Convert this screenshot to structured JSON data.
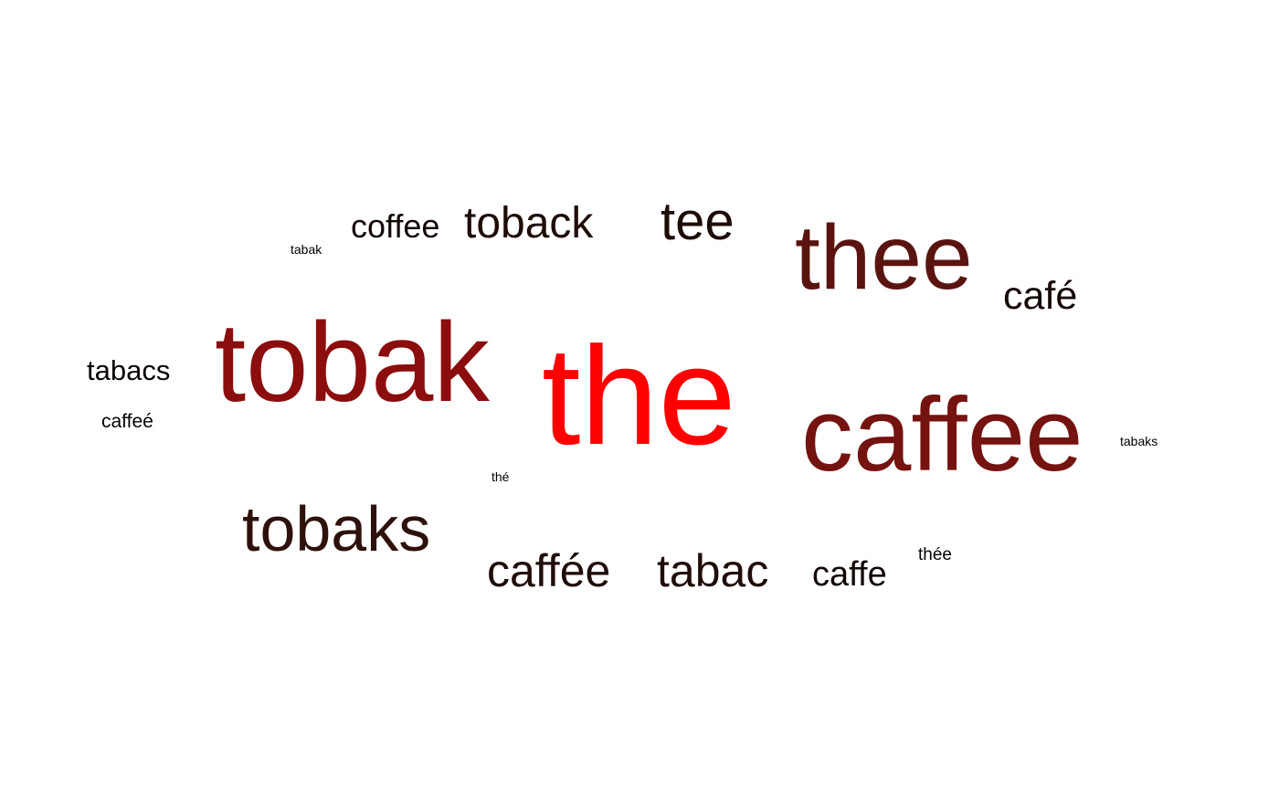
{
  "words": [
    {
      "id": "the",
      "text": "the",
      "color": "#ff0000"
    },
    {
      "id": "tobak",
      "text": "tobak",
      "color": "#8b0d0d"
    },
    {
      "id": "caffee",
      "text": "caffee",
      "color": "#74130f"
    },
    {
      "id": "thee",
      "text": "thee",
      "color": "#5a1410"
    },
    {
      "id": "tobaks",
      "text": "tobaks",
      "color": "#2e110b"
    },
    {
      "id": "caffee2",
      "text": "caffée",
      "color": "#200d08"
    },
    {
      "id": "tabac",
      "text": "tabac",
      "color": "#200d08"
    },
    {
      "id": "toback",
      "text": "toback",
      "color": "#1e0c07"
    },
    {
      "id": "tee",
      "text": "tee",
      "color": "#1e0c07"
    },
    {
      "id": "cafe",
      "text": "café",
      "color": "#160806"
    },
    {
      "id": "caffe",
      "text": "caffe",
      "color": "#130705"
    },
    {
      "id": "coffee",
      "text": "coffee",
      "color": "#130705"
    },
    {
      "id": "tabacs",
      "text": "tabacs",
      "color": "#0b0403"
    },
    {
      "id": "caffee3",
      "text": "caffeé",
      "color": "#050202"
    },
    {
      "id": "thee2",
      "text": "thée",
      "color": "#050202"
    },
    {
      "id": "tabak",
      "text": "tabak",
      "color": "#000000"
    },
    {
      "id": "tabaks",
      "text": "tabaks",
      "color": "#000000"
    },
    {
      "id": "the2",
      "text": "thé",
      "color": "#000000"
    }
  ]
}
